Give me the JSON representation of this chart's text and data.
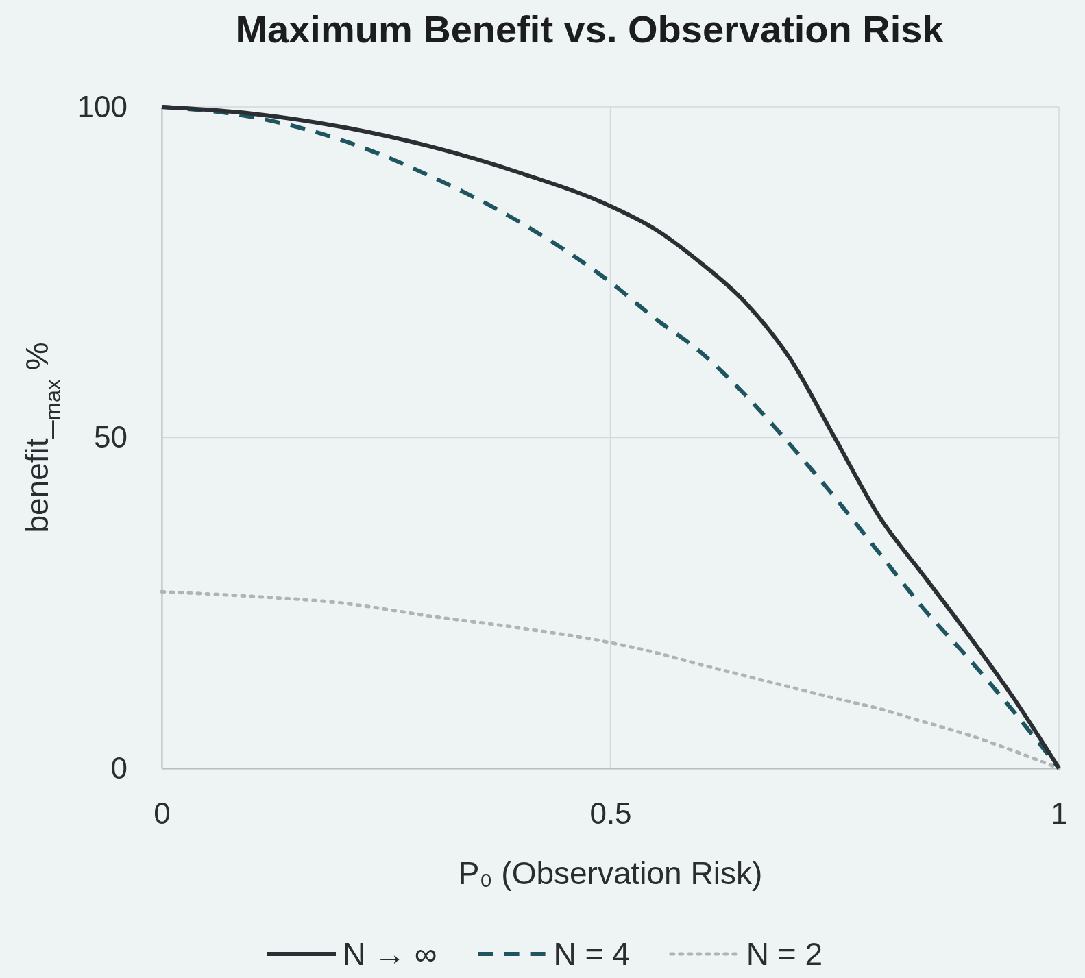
{
  "chart_data": {
    "type": "line",
    "title": "Maximum Benefit vs. Observation Risk",
    "xlabel": "P₀ (Observation Risk)",
    "ylabel": "benefit_$_{max}$ %",
    "x": [
      0,
      0.1,
      0.2,
      0.3,
      0.4,
      0.5,
      0.55,
      0.6,
      0.65,
      0.7,
      0.75,
      0.8,
      0.85,
      0.9,
      0.95,
      1
    ],
    "series": [
      {
        "name": "N → ∞",
        "color": "#2b2f33",
        "line_style": "solid",
        "values": [
          100,
          99,
          97,
          94,
          90,
          85,
          81.5,
          76.5,
          70.5,
          62,
          50,
          38,
          29,
          20,
          10.5,
          0
        ]
      },
      {
        "name": "N = 4",
        "color": "#1f5560",
        "line_style": "dashed",
        "values": [
          100,
          98.5,
          95,
          89.5,
          82.5,
          73.5,
          68,
          63,
          56.5,
          49,
          41,
          32.5,
          24,
          16.5,
          8.5,
          0
        ]
      },
      {
        "name": "N = 2",
        "color": "#b0b4b8",
        "line_style": "dotted",
        "values": [
          26.7,
          26,
          25,
          23,
          21.2,
          19,
          17.5,
          15.7,
          14,
          12.3,
          10.6,
          9,
          7,
          5,
          2.6,
          0
        ]
      }
    ],
    "xlim": [
      0,
      1
    ],
    "ylim": [
      0,
      100
    ],
    "xticks": [
      0,
      0.5,
      1
    ],
    "yticks": [
      0,
      50,
      100
    ],
    "grid": true,
    "legend": "bottom"
  }
}
